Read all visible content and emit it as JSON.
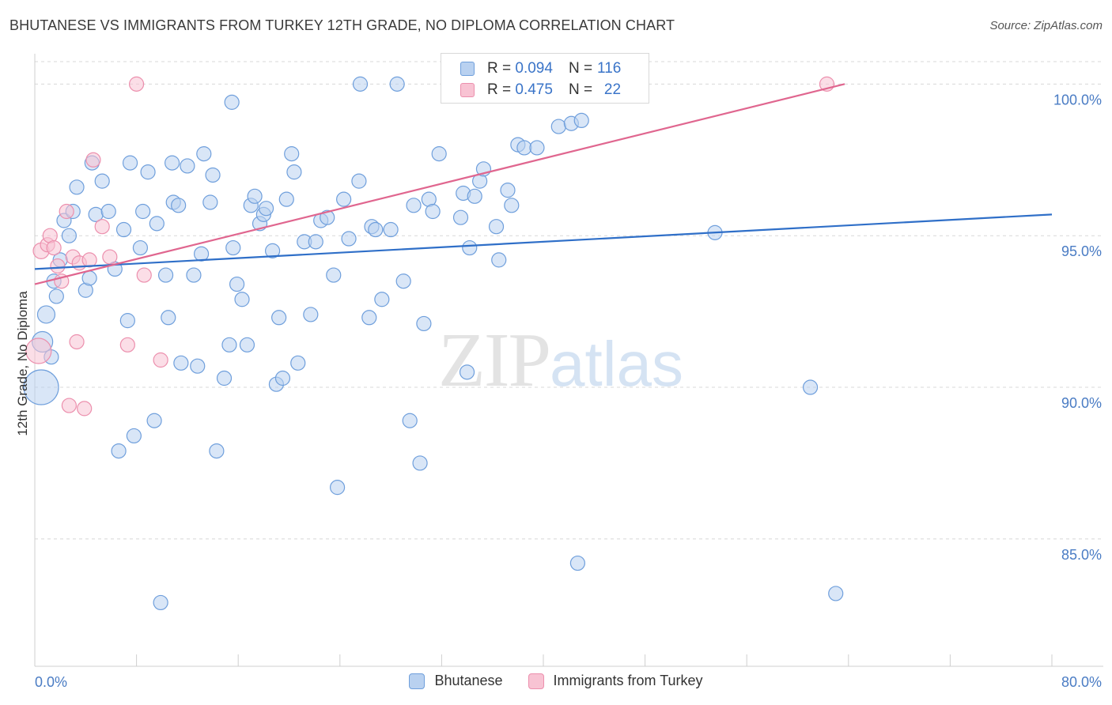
{
  "title": "BHUTANESE VS IMMIGRANTS FROM TURKEY 12TH GRADE, NO DIPLOMA CORRELATION CHART",
  "source": "Source: ZipAtlas.com",
  "watermark": {
    "zip": "ZIP",
    "atlas": "atlas"
  },
  "colors": {
    "blue_fill": "#b9d1f0",
    "blue_stroke": "#6f9fdc",
    "blue_line": "#2f6fc8",
    "pink_fill": "#f8c3d3",
    "pink_stroke": "#ec8fad",
    "pink_line": "#e0668f",
    "grid": "#d8d8d8",
    "tick_text": "#4a7cc4"
  },
  "legend": {
    "rows": [
      {
        "r_label": "R =",
        "r_value": "0.094",
        "n_label": "N =",
        "n_value": "116"
      },
      {
        "r_label": "R =",
        "r_value": "0.475",
        "n_label": "N =",
        "n_value": "22"
      }
    ]
  },
  "chart_data": {
    "type": "scatter",
    "title": "BHUTANESE VS IMMIGRANTS FROM TURKEY 12TH GRADE, NO DIPLOMA CORRELATION CHART",
    "xlabel": "",
    "ylabel": "12th Grade, No Diploma",
    "xlim": [
      0,
      80
    ],
    "ylim": [
      80.8,
      101.0
    ],
    "x_tick_labels": [
      "0.0%",
      "80.0%"
    ],
    "y_ticks": [
      85,
      90,
      95,
      100
    ],
    "y_tick_labels": [
      "85.0%",
      "90.0%",
      "95.0%",
      "100.0%"
    ],
    "grid": true,
    "legend_position": "top-center",
    "series": [
      {
        "name": "Bhutanese",
        "r": 0.094,
        "n": 116,
        "trend": {
          "x": [
            0,
            80
          ],
          "y": [
            93.9,
            95.7
          ]
        },
        "points": [
          [
            0.5,
            90.0,
            22
          ],
          [
            0.6,
            91.5,
            13
          ],
          [
            0.9,
            92.4,
            11
          ],
          [
            1.3,
            91.0,
            9
          ],
          [
            1.5,
            93.5,
            9
          ],
          [
            1.7,
            93.0,
            9
          ],
          [
            2.0,
            94.2,
            9
          ],
          [
            2.3,
            95.5,
            9
          ],
          [
            2.7,
            95.0,
            9
          ],
          [
            3.0,
            95.8,
            9
          ],
          [
            3.3,
            96.6,
            9
          ],
          [
            4.0,
            93.2,
            9
          ],
          [
            4.3,
            93.6,
            9
          ],
          [
            4.5,
            97.4,
            9
          ],
          [
            4.8,
            95.7,
            9
          ],
          [
            5.3,
            96.8,
            9
          ],
          [
            5.8,
            95.8,
            9
          ],
          [
            6.3,
            93.9,
            9
          ],
          [
            6.6,
            87.9,
            9
          ],
          [
            7.0,
            95.2,
            9
          ],
          [
            7.3,
            92.2,
            9
          ],
          [
            7.5,
            97.4,
            9
          ],
          [
            7.8,
            88.4,
            9
          ],
          [
            8.3,
            94.6,
            9
          ],
          [
            8.5,
            95.8,
            9
          ],
          [
            8.9,
            97.1,
            9
          ],
          [
            9.4,
            88.9,
            9
          ],
          [
            9.6,
            95.4,
            9
          ],
          [
            9.9,
            82.9,
            9
          ],
          [
            10.3,
            93.7,
            9
          ],
          [
            10.5,
            92.3,
            9
          ],
          [
            10.8,
            97.4,
            9
          ],
          [
            10.9,
            96.1,
            9
          ],
          [
            11.3,
            96.0,
            9
          ],
          [
            11.5,
            90.8,
            9
          ],
          [
            12.0,
            97.3,
            9
          ],
          [
            12.5,
            93.7,
            9
          ],
          [
            12.8,
            90.7,
            9
          ],
          [
            13.1,
            94.4,
            9
          ],
          [
            13.3,
            97.7,
            9
          ],
          [
            13.8,
            96.1,
            9
          ],
          [
            14.0,
            97.0,
            9
          ],
          [
            14.3,
            87.9,
            9
          ],
          [
            14.9,
            90.3,
            9
          ],
          [
            15.3,
            91.4,
            9
          ],
          [
            15.5,
            99.4,
            9
          ],
          [
            15.6,
            94.6,
            9
          ],
          [
            15.9,
            93.4,
            9
          ],
          [
            16.3,
            92.9,
            9
          ],
          [
            16.7,
            91.4,
            9
          ],
          [
            17.0,
            96.0,
            9
          ],
          [
            17.3,
            96.3,
            9
          ],
          [
            17.7,
            95.4,
            9
          ],
          [
            18.0,
            95.7,
            9
          ],
          [
            18.2,
            95.9,
            9
          ],
          [
            18.7,
            94.5,
            9
          ],
          [
            19.0,
            90.1,
            9
          ],
          [
            19.2,
            92.3,
            9
          ],
          [
            19.5,
            90.3,
            9
          ],
          [
            19.8,
            96.2,
            9
          ],
          [
            20.2,
            97.7,
            9
          ],
          [
            20.4,
            97.1,
            9
          ],
          [
            20.7,
            90.8,
            9
          ],
          [
            21.2,
            94.8,
            9
          ],
          [
            21.7,
            92.4,
            9
          ],
          [
            22.1,
            94.8,
            9
          ],
          [
            22.5,
            95.5,
            9
          ],
          [
            23.0,
            95.6,
            9
          ],
          [
            23.5,
            93.7,
            9
          ],
          [
            23.8,
            86.7,
            9
          ],
          [
            24.3,
            96.2,
            9
          ],
          [
            24.7,
            94.9,
            9
          ],
          [
            25.5,
            96.8,
            9
          ],
          [
            25.6,
            100.0,
            9
          ],
          [
            26.3,
            92.3,
            9
          ],
          [
            26.5,
            95.3,
            9
          ],
          [
            26.8,
            95.2,
            9
          ],
          [
            27.3,
            92.9,
            9
          ],
          [
            28.0,
            95.2,
            9
          ],
          [
            28.5,
            100.0,
            9
          ],
          [
            29.0,
            93.5,
            9
          ],
          [
            29.5,
            88.9,
            9
          ],
          [
            29.8,
            96.0,
            9
          ],
          [
            30.3,
            87.5,
            9
          ],
          [
            30.6,
            92.1,
            9
          ],
          [
            31.0,
            96.2,
            9
          ],
          [
            31.3,
            95.8,
            9
          ],
          [
            31.8,
            97.7,
            9
          ],
          [
            33.5,
            95.6,
            9
          ],
          [
            33.7,
            96.4,
            9
          ],
          [
            34.0,
            90.5,
            9
          ],
          [
            34.2,
            94.6,
            9
          ],
          [
            34.6,
            96.3,
            9
          ],
          [
            35.0,
            96.8,
            9
          ],
          [
            35.3,
            97.2,
            9
          ],
          [
            36.3,
            95.3,
            9
          ],
          [
            36.5,
            94.2,
            9
          ],
          [
            37.2,
            96.5,
            9
          ],
          [
            37.5,
            96.0,
            9
          ],
          [
            38.0,
            98.0,
            9
          ],
          [
            38.5,
            97.9,
            9
          ],
          [
            39.5,
            97.9,
            9
          ],
          [
            41.2,
            98.6,
            9
          ],
          [
            41.5,
            100.0,
            9
          ],
          [
            42.2,
            98.7,
            9
          ],
          [
            42.7,
            84.2,
            9
          ],
          [
            43.0,
            98.8,
            9
          ],
          [
            43.8,
            100.0,
            9
          ],
          [
            53.5,
            95.1,
            9
          ],
          [
            61.0,
            90.0,
            9
          ],
          [
            63.0,
            83.2,
            9
          ]
        ]
      },
      {
        "name": "Immigrants from Turkey",
        "r": 0.475,
        "n": 22,
        "trend": {
          "x": [
            0,
            63.7
          ],
          "y": [
            93.4,
            100.0
          ]
        },
        "points": [
          [
            0.3,
            91.2,
            16
          ],
          [
            0.5,
            94.5,
            10
          ],
          [
            1.0,
            94.7,
            9
          ],
          [
            1.2,
            95.0,
            9
          ],
          [
            1.5,
            94.6,
            9
          ],
          [
            1.8,
            94.0,
            9
          ],
          [
            2.1,
            93.5,
            9
          ],
          [
            2.5,
            95.8,
            9
          ],
          [
            2.7,
            89.4,
            9
          ],
          [
            3.0,
            94.3,
            9
          ],
          [
            3.3,
            91.5,
            9
          ],
          [
            3.5,
            94.1,
            9
          ],
          [
            3.9,
            89.3,
            9
          ],
          [
            4.3,
            94.2,
            9
          ],
          [
            4.6,
            97.5,
            9
          ],
          [
            5.3,
            95.3,
            9
          ],
          [
            5.9,
            94.3,
            9
          ],
          [
            7.3,
            91.4,
            9
          ],
          [
            8.0,
            100.0,
            9
          ],
          [
            8.6,
            93.7,
            9
          ],
          [
            9.9,
            90.9,
            9
          ],
          [
            62.3,
            100.0,
            9
          ]
        ]
      }
    ]
  }
}
